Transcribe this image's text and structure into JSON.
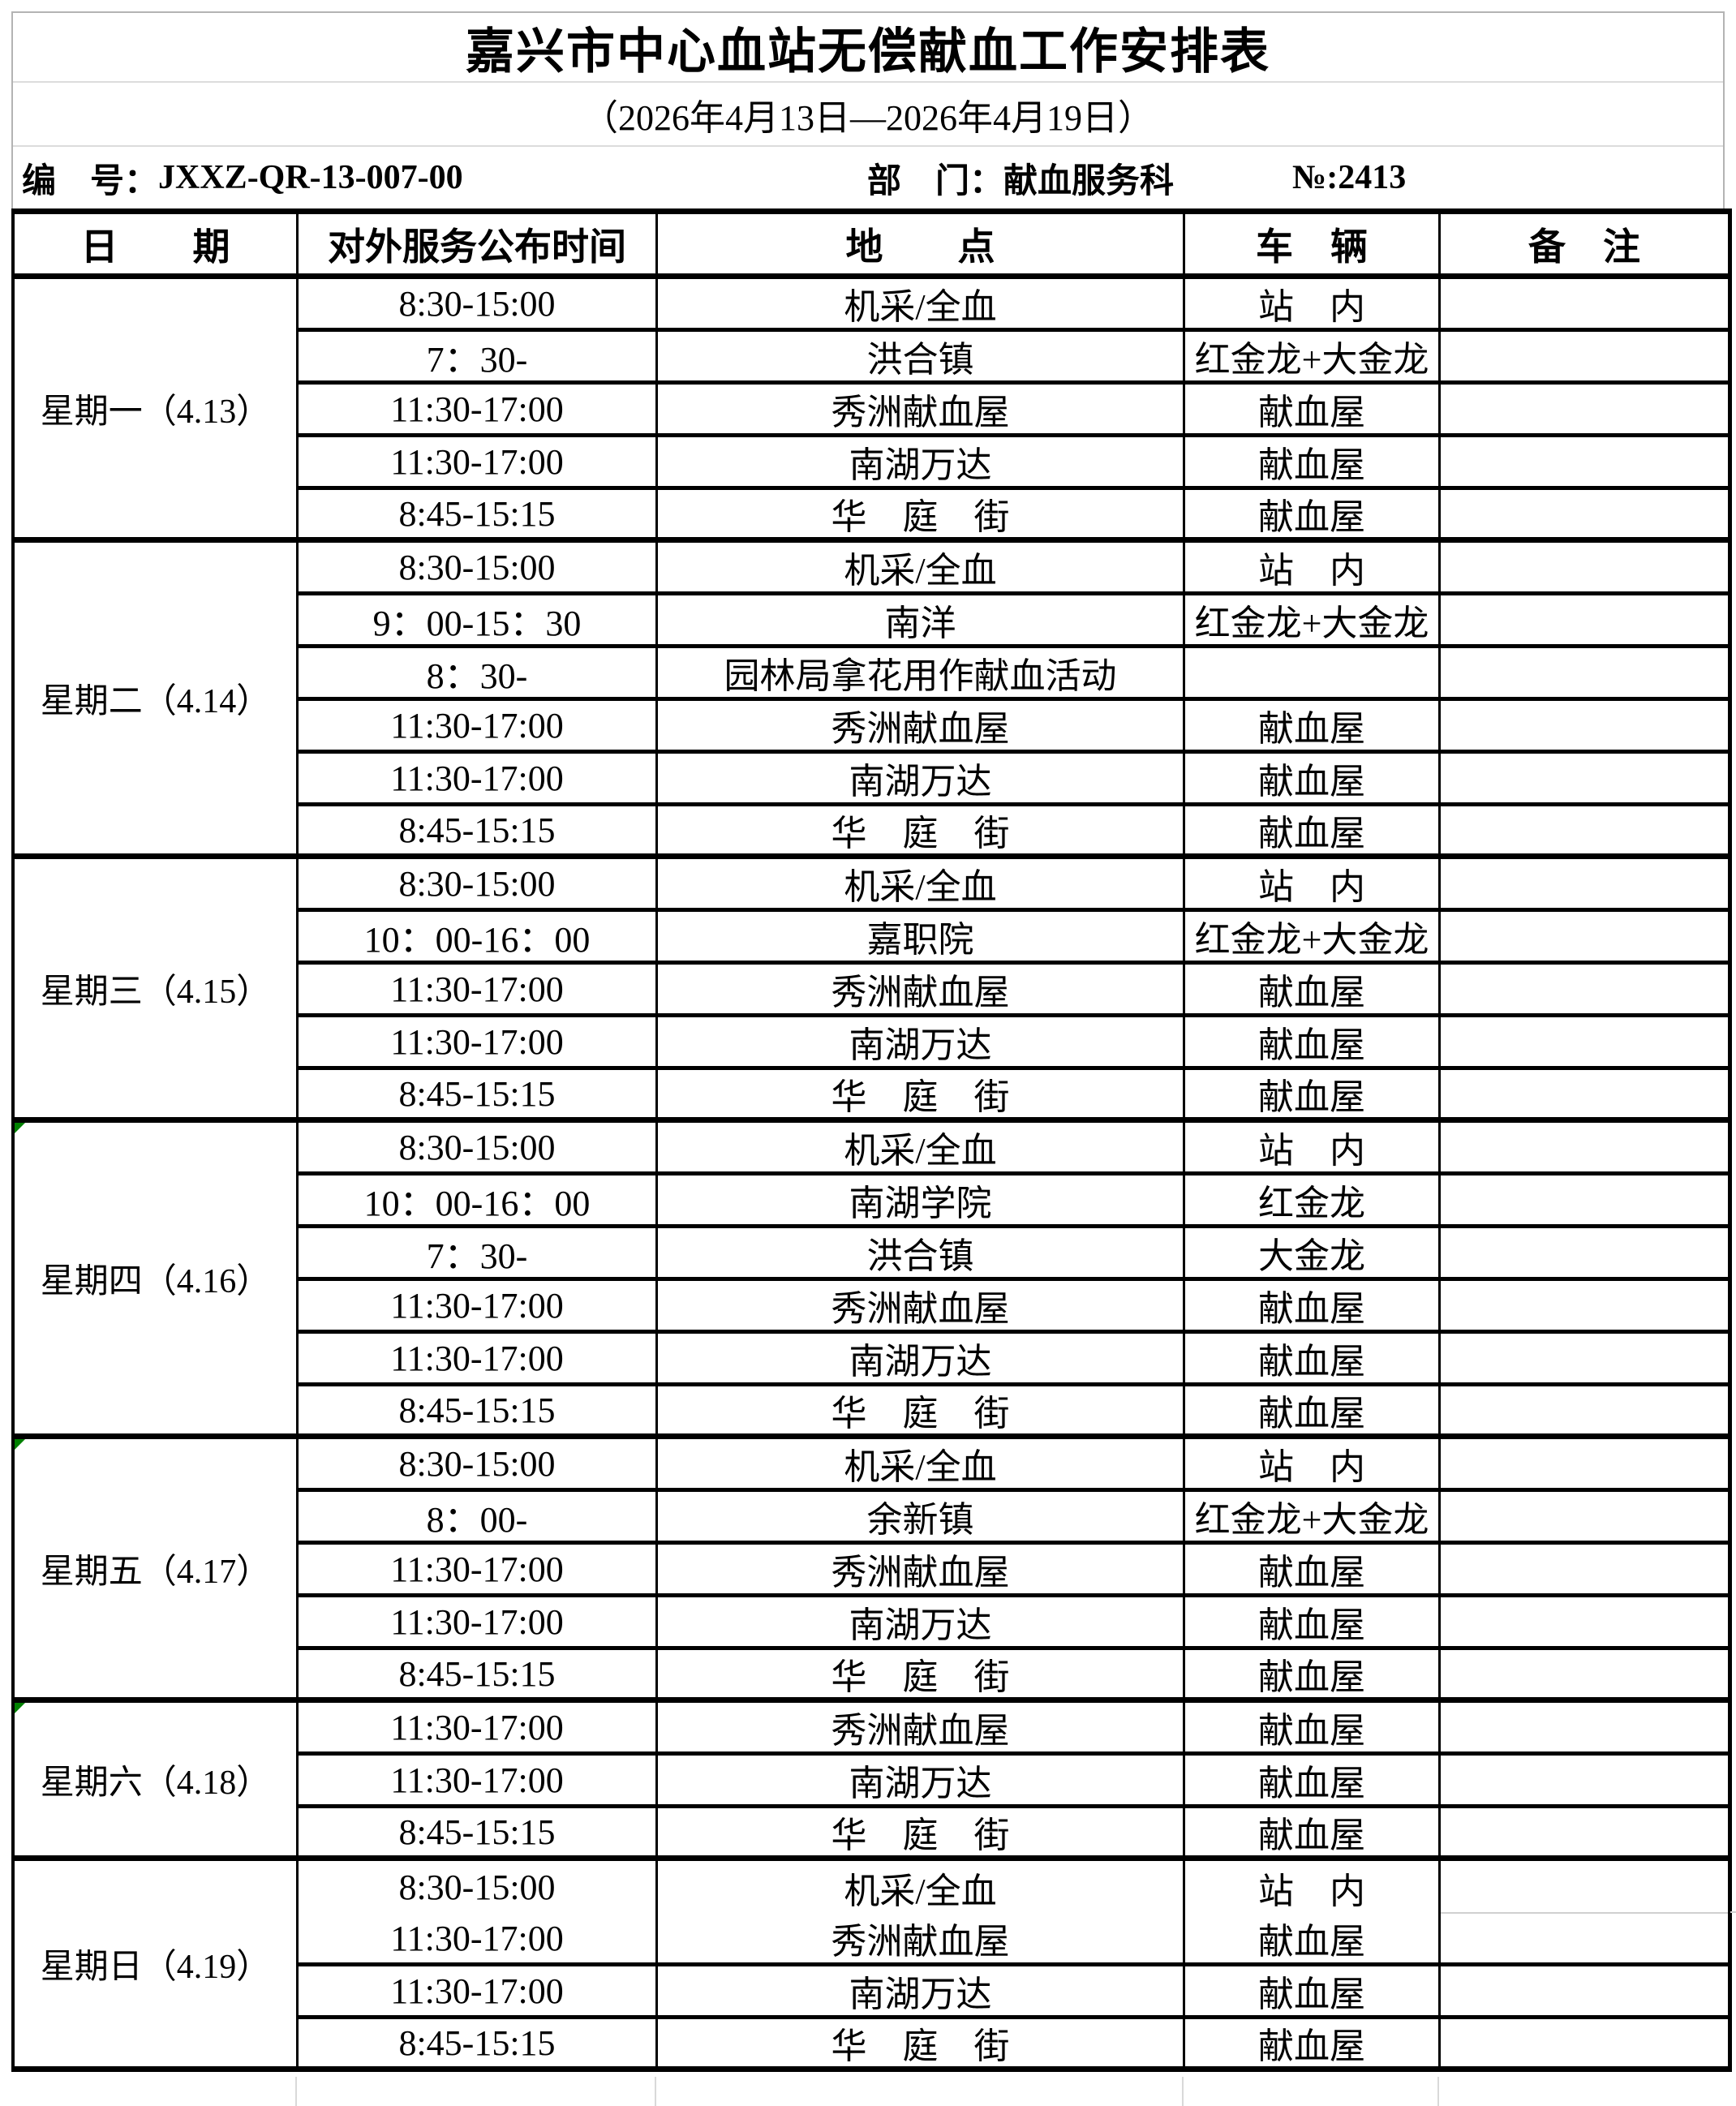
{
  "title": "嘉兴市中心血站无偿献血工作安排表",
  "subtitle": "（2026年4月13日—2026年4月19日）",
  "meta": {
    "code_label": "编　号：",
    "code_value": "JXXZ-QR-13-007-00",
    "dept_label": "部　门：",
    "dept_value": "献血服务科",
    "serial_label": "№:",
    "serial_value": "2413"
  },
  "table": {
    "columns": [
      "日　　期",
      "对外服务公布时间",
      "地　　点",
      "车　辆",
      "备　注"
    ],
    "groups": [
      {
        "day": "星期一（4.13）",
        "flag": false,
        "rows": [
          {
            "time": "8:30-15:00",
            "place": "机采/全血",
            "vehicle": "站　内",
            "note": ""
          },
          {
            "time": "7：30-",
            "place": "洪合镇",
            "vehicle": "红金龙+大金龙",
            "note": ""
          },
          {
            "time": "11:30-17:00",
            "place": "秀洲献血屋",
            "vehicle": "献血屋",
            "note": ""
          },
          {
            "time": "11:30-17:00",
            "place": "南湖万达",
            "vehicle": "献血屋",
            "note": ""
          },
          {
            "time": "8:45-15:15",
            "place": "华　庭　街",
            "vehicle": "献血屋",
            "note": ""
          }
        ]
      },
      {
        "day": "星期二（4.14）",
        "flag": false,
        "rows": [
          {
            "time": "8:30-15:00",
            "place": "机采/全血",
            "vehicle": "站　内",
            "note": ""
          },
          {
            "time": "9：00-15：30",
            "place": "南洋",
            "vehicle": "红金龙+大金龙",
            "note": ""
          },
          {
            "time": "8：30-",
            "place": "园林局拿花用作献血活动",
            "vehicle": "",
            "note": ""
          },
          {
            "time": "11:30-17:00",
            "place": "秀洲献血屋",
            "vehicle": "献血屋",
            "note": ""
          },
          {
            "time": "11:30-17:00",
            "place": "南湖万达",
            "vehicle": "献血屋",
            "note": ""
          },
          {
            "time": "8:45-15:15",
            "place": "华　庭　街",
            "vehicle": "献血屋",
            "note": ""
          }
        ]
      },
      {
        "day": "星期三（4.15）",
        "flag": false,
        "rows": [
          {
            "time": "8:30-15:00",
            "place": "机采/全血",
            "vehicle": "站　内",
            "note": ""
          },
          {
            "time": "10：00-16：00",
            "place": "嘉职院",
            "vehicle": "红金龙+大金龙",
            "note": ""
          },
          {
            "time": "11:30-17:00",
            "place": "秀洲献血屋",
            "vehicle": "献血屋",
            "note": ""
          },
          {
            "time": "11:30-17:00",
            "place": "南湖万达",
            "vehicle": "献血屋",
            "note": ""
          },
          {
            "time": "8:45-15:15",
            "place": "华　庭　街",
            "vehicle": "献血屋",
            "note": ""
          }
        ]
      },
      {
        "day": "星期四（4.16）",
        "flag": true,
        "rows": [
          {
            "time": "8:30-15:00",
            "place": "机采/全血",
            "vehicle": "站　内",
            "note": ""
          },
          {
            "time": "10：00-16：00",
            "place": "南湖学院",
            "vehicle": "红金龙",
            "note": ""
          },
          {
            "time": "7：30-",
            "place": "洪合镇",
            "vehicle": "大金龙",
            "note": ""
          },
          {
            "time": "11:30-17:00",
            "place": "秀洲献血屋",
            "vehicle": "献血屋",
            "note": ""
          },
          {
            "time": "11:30-17:00",
            "place": "南湖万达",
            "vehicle": "献血屋",
            "note": ""
          },
          {
            "time": "8:45-15:15",
            "place": "华　庭　街",
            "vehicle": "献血屋",
            "note": ""
          }
        ]
      },
      {
        "day": "星期五（4.17）",
        "flag": true,
        "rows": [
          {
            "time": "8:30-15:00",
            "place": "机采/全血",
            "vehicle": "站　内",
            "note": ""
          },
          {
            "time": "8：00-",
            "place": "余新镇",
            "vehicle": "红金龙+大金龙",
            "note": ""
          },
          {
            "time": "11:30-17:00",
            "place": "秀洲献血屋",
            "vehicle": "献血屋",
            "note": ""
          },
          {
            "time": "11:30-17:00",
            "place": "南湖万达",
            "vehicle": "献血屋",
            "note": ""
          },
          {
            "time": "8:45-15:15",
            "place": "华　庭　街",
            "vehicle": "献血屋",
            "note": ""
          }
        ]
      },
      {
        "day": "星期六（4.18）",
        "flag": true,
        "rows": [
          {
            "time": "11:30-17:00",
            "place": "秀洲献血屋",
            "vehicle": "献血屋",
            "note": ""
          },
          {
            "time": "11:30-17:00",
            "place": "南湖万达",
            "vehicle": "献血屋",
            "note": ""
          },
          {
            "time": "8:45-15:15",
            "place": "华　庭　街",
            "vehicle": "献血屋",
            "note": ""
          }
        ]
      },
      {
        "day": "星期日（4.19）",
        "flag": false,
        "first_row_unruled": true,
        "rows": [
          {
            "time": "8:30-15:00",
            "place": "机采/全血",
            "vehicle": "站　内",
            "note": ""
          },
          {
            "time": "11:30-17:00",
            "place": "秀洲献血屋",
            "vehicle": "献血屋",
            "note": ""
          },
          {
            "time": "11:30-17:00",
            "place": "南湖万达",
            "vehicle": "献血屋",
            "note": ""
          },
          {
            "time": "8:45-15:15",
            "place": "华　庭　街",
            "vehicle": "献血屋",
            "note": ""
          }
        ]
      }
    ]
  },
  "colors": {
    "border_black": "#000000",
    "gridline_gray": "#d9d9d9",
    "flag_green": "#008000"
  }
}
